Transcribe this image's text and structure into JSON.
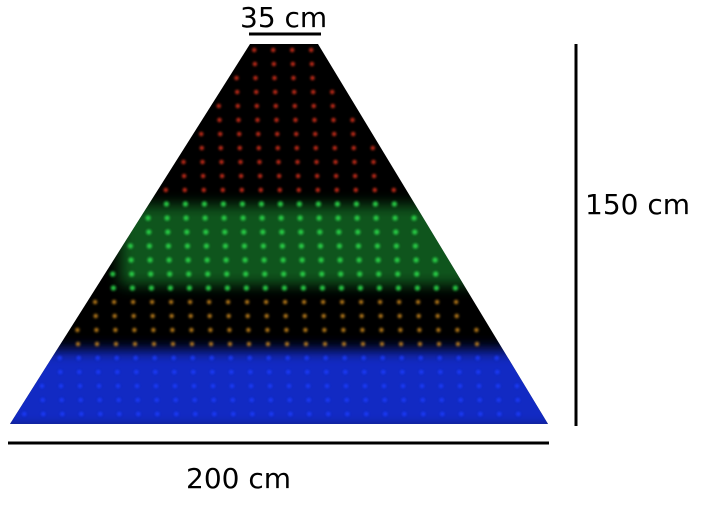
{
  "dimensions": {
    "top_width": "35 cm",
    "height": "150 cm",
    "bottom_width": "200 cm"
  },
  "colors": {
    "background": "#ffffff",
    "net": "#000000",
    "lines": "#000000",
    "led_bands": [
      "#e0301e",
      "#2bd64a",
      "#f0a020",
      "#1a3cff"
    ]
  },
  "led_bands_top_to_bottom": [
    "red",
    "green",
    "amber",
    "blue"
  ]
}
